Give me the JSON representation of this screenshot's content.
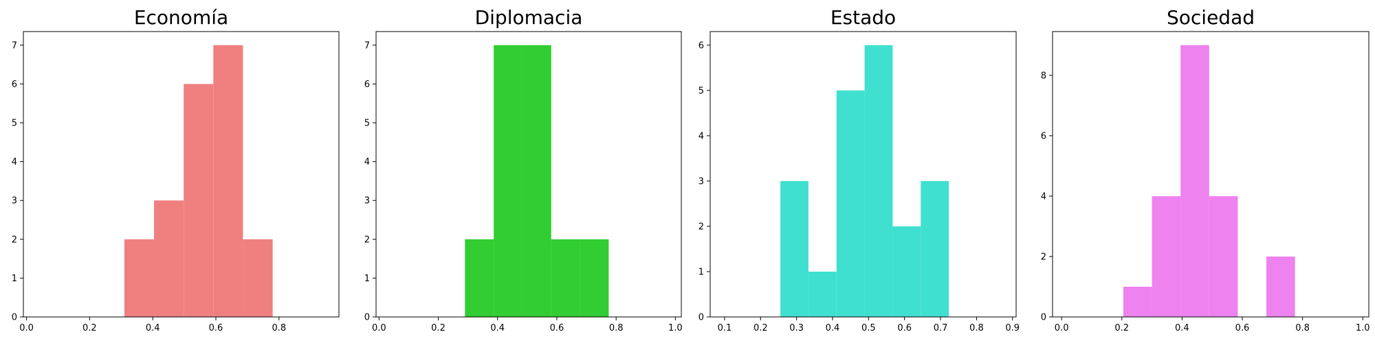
{
  "chart_data": [
    {
      "type": "bar",
      "title": "Economía",
      "color": "#F08080",
      "bins": [
        {
          "x0": 0.31,
          "x1": 0.404,
          "count": 2
        },
        {
          "x0": 0.404,
          "x1": 0.498,
          "count": 3
        },
        {
          "x0": 0.498,
          "x1": 0.592,
          "count": 6
        },
        {
          "x0": 0.592,
          "x1": 0.686,
          "count": 7
        },
        {
          "x0": 0.686,
          "x1": 0.78,
          "count": 2
        }
      ],
      "xlim": [
        -0.01,
        0.99
      ],
      "ylim": [
        0,
        7.35
      ],
      "xticks": [
        0.0,
        0.2,
        0.4,
        0.6,
        0.8
      ],
      "xtick_labels": [
        "0.0",
        "0.2",
        "0.4",
        "0.6",
        "0.8"
      ],
      "yticks": [
        0,
        1,
        2,
        3,
        4,
        5,
        6,
        7
      ],
      "ytick_labels": [
        "0",
        "1",
        "2",
        "3",
        "4",
        "5",
        "6",
        "7"
      ]
    },
    {
      "type": "bar",
      "title": "Diplomacia",
      "color": "#32CD32",
      "bins": [
        {
          "x0": 0.29,
          "x1": 0.387,
          "count": 2
        },
        {
          "x0": 0.387,
          "x1": 0.484,
          "count": 7
        },
        {
          "x0": 0.484,
          "x1": 0.581,
          "count": 7
        },
        {
          "x0": 0.581,
          "x1": 0.678,
          "count": 2
        },
        {
          "x0": 0.678,
          "x1": 0.775,
          "count": 2
        }
      ],
      "xlim": [
        -0.01,
        1.02
      ],
      "ylim": [
        0,
        7.35
      ],
      "xticks": [
        0.0,
        0.2,
        0.4,
        0.6,
        0.8,
        1.0
      ],
      "xtick_labels": [
        "0.0",
        "0.2",
        "0.4",
        "0.6",
        "0.8",
        "1.0"
      ],
      "yticks": [
        0,
        1,
        2,
        3,
        4,
        5,
        6,
        7
      ],
      "ytick_labels": [
        "0",
        "1",
        "2",
        "3",
        "4",
        "5",
        "6",
        "7"
      ]
    },
    {
      "type": "bar",
      "title": "Estado",
      "color": "#40E0D0",
      "bins": [
        {
          "x0": 0.255,
          "x1": 0.333,
          "count": 3
        },
        {
          "x0": 0.333,
          "x1": 0.411,
          "count": 1
        },
        {
          "x0": 0.411,
          "x1": 0.489,
          "count": 5
        },
        {
          "x0": 0.489,
          "x1": 0.567,
          "count": 6
        },
        {
          "x0": 0.567,
          "x1": 0.645,
          "count": 2
        },
        {
          "x0": 0.645,
          "x1": 0.723,
          "count": 3
        }
      ],
      "xlim": [
        0.06,
        0.91
      ],
      "ylim": [
        0,
        6.3
      ],
      "xticks": [
        0.1,
        0.2,
        0.3,
        0.4,
        0.5,
        0.6,
        0.7,
        0.8,
        0.9
      ],
      "xtick_labels": [
        "0.1",
        "0.2",
        "0.3",
        "0.4",
        "0.5",
        "0.6",
        "0.7",
        "0.8",
        "0.9"
      ],
      "yticks": [
        0,
        1,
        2,
        3,
        4,
        5,
        6
      ],
      "ytick_labels": [
        "0",
        "1",
        "2",
        "3",
        "4",
        "5",
        "6"
      ]
    },
    {
      "type": "bar",
      "title": "Sociedad",
      "color": "#EE82EE",
      "bins": [
        {
          "x0": 0.205,
          "x1": 0.3,
          "count": 1
        },
        {
          "x0": 0.3,
          "x1": 0.395,
          "count": 4
        },
        {
          "x0": 0.395,
          "x1": 0.49,
          "count": 9
        },
        {
          "x0": 0.49,
          "x1": 0.585,
          "count": 4
        },
        {
          "x0": 0.585,
          "x1": 0.68,
          "count": 0
        },
        {
          "x0": 0.68,
          "x1": 0.775,
          "count": 2
        }
      ],
      "xlim": [
        -0.03,
        1.02
      ],
      "ylim": [
        0,
        9.45
      ],
      "xticks": [
        0.0,
        0.2,
        0.4,
        0.6,
        0.8,
        1.0
      ],
      "xtick_labels": [
        "0.0",
        "0.2",
        "0.4",
        "0.6",
        "0.8",
        "1.0"
      ],
      "yticks": [
        0,
        2,
        4,
        6,
        8
      ],
      "ytick_labels": [
        "0",
        "2",
        "4",
        "6",
        "8"
      ]
    }
  ]
}
